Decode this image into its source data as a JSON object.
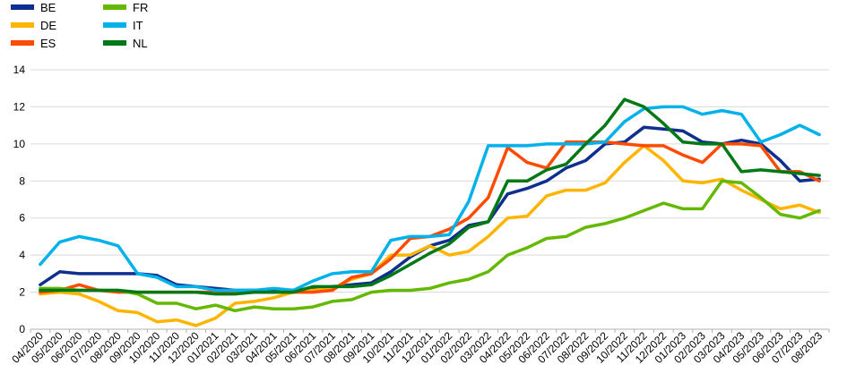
{
  "chart_data": {
    "type": "line",
    "title": "",
    "xlabel": "",
    "ylabel": "",
    "ylim": [
      0,
      14
    ],
    "yticks": [
      0,
      2,
      4,
      6,
      8,
      10,
      12,
      14
    ],
    "grid": "horizontal",
    "legend_position": "top-left",
    "categories": [
      "04/2020",
      "05/2020",
      "06/2020",
      "07/2020",
      "08/2020",
      "09/2020",
      "10/2020",
      "11/2020",
      "12/2020",
      "01/2021",
      "02/2021",
      "03/2021",
      "04/2021",
      "05/2021",
      "06/2021",
      "07/2021",
      "08/2021",
      "09/2021",
      "10/2021",
      "11/2021",
      "12/2021",
      "01/2022",
      "02/2022",
      "03/2022",
      "04/2022",
      "05/2022",
      "06/2022",
      "07/2022",
      "08/2022",
      "09/2022",
      "10/2022",
      "11/2022",
      "12/2022",
      "01/2023",
      "02/2023",
      "03/2023",
      "04/2023",
      "05/2023",
      "06/2023",
      "07/2023",
      "08/2023"
    ],
    "series": [
      {
        "name": "BE",
        "color": "#0f2f8f",
        "values": [
          2.4,
          3.1,
          3.0,
          3.0,
          3.0,
          3.0,
          2.9,
          2.4,
          2.3,
          2.2,
          2.1,
          2.1,
          2.1,
          2.1,
          2.2,
          2.3,
          2.4,
          2.5,
          3.1,
          3.9,
          4.5,
          4.8,
          5.6,
          5.8,
          7.3,
          7.6,
          8.0,
          8.7,
          9.1,
          10.0,
          10.1,
          10.9,
          10.8,
          10.7,
          10.1,
          10.0,
          10.2,
          10.0,
          9.1,
          8.0,
          8.1
        ]
      },
      {
        "name": "DE",
        "color": "#ffb400",
        "values": [
          1.9,
          2.0,
          1.9,
          1.5,
          1.0,
          0.9,
          0.4,
          0.5,
          0.2,
          0.6,
          1.4,
          1.5,
          1.7,
          2.0,
          2.1,
          2.2,
          2.7,
          3.0,
          4.0,
          4.0,
          4.5,
          4.0,
          4.2,
          5.0,
          6.0,
          6.1,
          7.2,
          7.5,
          7.5,
          7.9,
          9.0,
          9.9,
          9.1,
          8.0,
          7.9,
          8.1,
          7.5,
          7.0,
          6.5,
          6.7,
          6.3
        ]
      },
      {
        "name": "ES",
        "color": "#ff4b00",
        "values": [
          2.0,
          2.1,
          2.4,
          2.1,
          2.0,
          2.0,
          2.0,
          2.0,
          2.0,
          2.0,
          2.0,
          2.0,
          2.0,
          2.0,
          2.0,
          2.1,
          2.8,
          3.0,
          3.8,
          4.9,
          5.0,
          5.4,
          6.0,
          7.1,
          9.8,
          9.0,
          8.7,
          10.1,
          10.1,
          10.1,
          10.0,
          9.9,
          9.9,
          9.4,
          9.0,
          10.0,
          10.0,
          9.9,
          8.5,
          8.5,
          8.0
        ]
      },
      {
        "name": "FR",
        "color": "#65b800",
        "values": [
          2.2,
          2.2,
          2.1,
          2.1,
          2.1,
          1.9,
          1.4,
          1.4,
          1.1,
          1.3,
          1.0,
          1.2,
          1.1,
          1.1,
          1.2,
          1.5,
          1.6,
          2.0,
          2.1,
          2.1,
          2.2,
          2.5,
          2.7,
          3.1,
          4.0,
          4.4,
          4.9,
          5.0,
          5.5,
          5.7,
          6.0,
          6.4,
          6.8,
          6.5,
          6.5,
          8.0,
          7.9,
          7.1,
          6.2,
          6.0,
          6.4
        ]
      },
      {
        "name": "IT",
        "color": "#00b1ea",
        "values": [
          3.5,
          4.7,
          5.0,
          4.8,
          4.5,
          3.0,
          2.8,
          2.3,
          2.3,
          2.1,
          2.1,
          2.1,
          2.2,
          2.1,
          2.6,
          3.0,
          3.1,
          3.1,
          4.8,
          5.0,
          5.0,
          5.1,
          6.9,
          9.9,
          9.9,
          9.9,
          10.0,
          10.0,
          10.0,
          10.1,
          11.2,
          11.9,
          12.0,
          12.0,
          11.6,
          11.8,
          11.6,
          10.1,
          10.5,
          11.0,
          10.5
        ]
      },
      {
        "name": "NL",
        "color": "#007816",
        "values": [
          2.1,
          2.1,
          2.1,
          2.1,
          2.1,
          2.0,
          2.0,
          2.0,
          2.0,
          1.9,
          1.9,
          2.0,
          2.0,
          2.0,
          2.3,
          2.3,
          2.3,
          2.4,
          2.9,
          3.5,
          4.1,
          4.6,
          5.5,
          5.8,
          8.0,
          8.0,
          8.6,
          8.9,
          10.0,
          11.0,
          12.4,
          12.0,
          11.1,
          10.1,
          10.0,
          10.0,
          8.5,
          8.6,
          8.5,
          8.4,
          8.3
        ]
      }
    ]
  }
}
